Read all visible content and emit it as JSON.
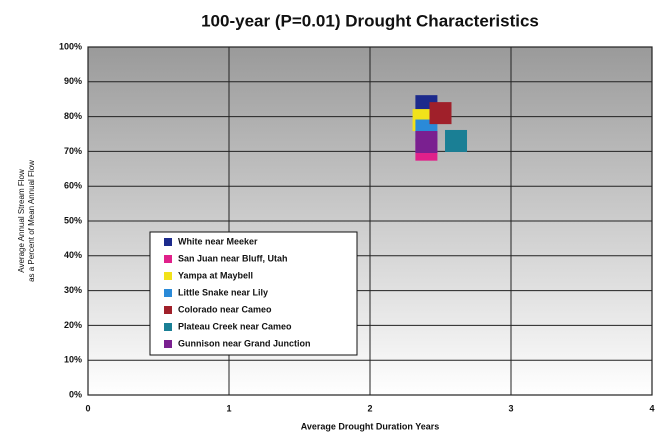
{
  "chart_data": {
    "type": "scatter",
    "title": "100-year (P=0.01) Drought Characteristics",
    "xlabel": "Average Drought Duration Years",
    "ylabel": [
      "Average Annual Stream Flow",
      "as a Percent of Mean Annual Flow"
    ],
    "xlim": [
      0,
      4
    ],
    "xticks": [
      0,
      1,
      2,
      3,
      4
    ],
    "ylim": [
      0,
      100
    ],
    "yticks": [
      {
        "value": 0,
        "label": "0%"
      },
      {
        "value": 10,
        "label": "10%"
      },
      {
        "value": 20,
        "label": "20%"
      },
      {
        "value": 30,
        "label": "30%"
      },
      {
        "value": 40,
        "label": "40%"
      },
      {
        "value": 50,
        "label": "50%"
      },
      {
        "value": 60,
        "label": "60%"
      },
      {
        "value": 70,
        "label": "70%"
      },
      {
        "value": 80,
        "label": "80%"
      },
      {
        "value": 90,
        "label": "90%"
      },
      {
        "value": 100,
        "label": "100%"
      }
    ],
    "grid": true,
    "series": [
      {
        "name": "White near Meeker",
        "color": "#1c2a8c",
        "x": [
          2.4
        ],
        "values": [
          83
        ]
      },
      {
        "name": "San Juan near Bluff, Utah",
        "color": "#e0208a",
        "x": [
          2.4
        ],
        "values": [
          70.5
        ]
      },
      {
        "name": "Yampa at Maybell",
        "color": "#f2e21a",
        "x": [
          2.38
        ],
        "values": [
          79
        ]
      },
      {
        "name": "Little Snake near Lily",
        "color": "#2a8ad8",
        "x": [
          2.4
        ],
        "values": [
          76
        ]
      },
      {
        "name": "Colorado near Cameo",
        "color": "#a0202a",
        "x": [
          2.5
        ],
        "values": [
          81
        ]
      },
      {
        "name": "Plateau Creek near Cameo",
        "color": "#1a7f95",
        "x": [
          2.61
        ],
        "values": [
          73
        ]
      },
      {
        "name": "Gunnison near Grand Junction",
        "color": "#7a2090",
        "x": [
          2.4
        ],
        "values": [
          72.7
        ]
      }
    ]
  }
}
